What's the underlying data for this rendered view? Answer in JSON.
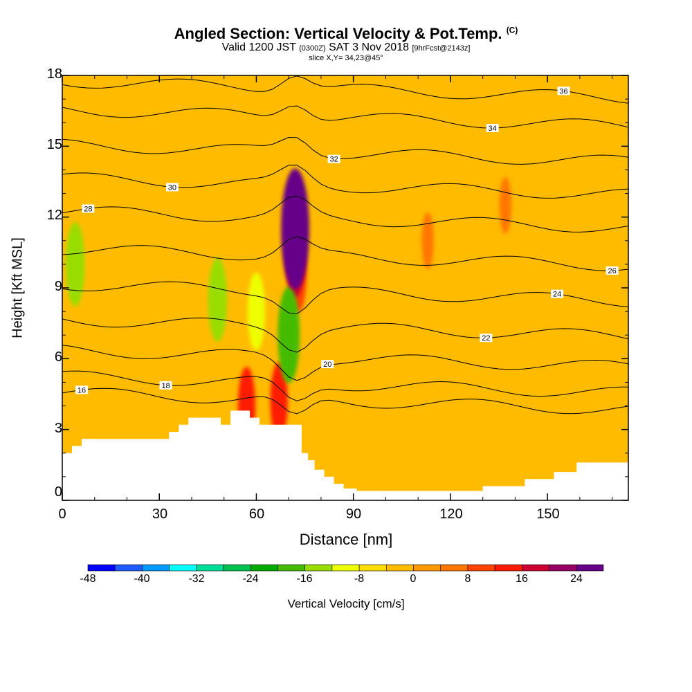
{
  "header": {
    "title": "Angled Section: Vertical Velocity & Pot.Temp.",
    "title_unit": "(C)",
    "valid_prefix": "Valid 1200 JST",
    "valid_z": "(0300Z)",
    "valid_date": "SAT 3 Nov 2018",
    "forecast": "[9hrFcst@2143z]",
    "slice": "slice X,Y= 34,23@45°"
  },
  "colors": {
    "background_field": "#ffbb00",
    "terrain": "#ffffff",
    "contour_line": "#000000"
  },
  "chart_data": {
    "type": "heatmap",
    "xlabel": "Distance [nm]",
    "ylabel": "Height [Kft MSL]",
    "xlim": [
      0,
      175
    ],
    "ylim": [
      0,
      18
    ],
    "x_ticks": [
      "0",
      "30",
      "60",
      "90",
      "120",
      "150"
    ],
    "y_ticks": [
      "0",
      "3",
      "6",
      "9",
      "12",
      "15",
      "18"
    ],
    "colorbar": {
      "label": "Vertical Velocity [cm/s]",
      "levels": [
        -48,
        -44,
        -40,
        -36,
        -32,
        -28,
        -24,
        -20,
        -16,
        -12,
        -8,
        -4,
        0,
        4,
        8,
        12,
        16,
        20,
        24,
        28
      ],
      "tick_labels": [
        "-48",
        "-40",
        "-32",
        "-24",
        "-16",
        "-8",
        "0",
        "8",
        "16",
        "24"
      ],
      "colors": [
        "#0000ff",
        "#1e5bff",
        "#0099ff",
        "#00ffff",
        "#00dd99",
        "#00c050",
        "#00aa00",
        "#44bb00",
        "#99dd00",
        "#eeff00",
        "#ffdd00",
        "#ffbb00",
        "#ff9900",
        "#ff7700",
        "#ff4400",
        "#ff1a00",
        "#cc0033",
        "#990066",
        "#660088"
      ]
    },
    "terrain_profile": {
      "x": [
        0,
        3,
        3,
        6,
        6,
        33,
        33,
        36,
        36,
        39,
        39,
        49,
        49,
        52,
        52,
        58,
        58,
        61,
        61,
        64,
        64,
        74,
        74,
        76,
        76,
        78,
        78,
        81,
        81,
        84,
        84,
        87,
        87,
        91,
        91,
        130,
        130,
        143,
        143,
        152,
        152,
        159,
        159,
        175
      ],
      "height": [
        2.0,
        2.0,
        2.3,
        2.3,
        2.6,
        2.6,
        2.9,
        2.9,
        3.2,
        3.2,
        3.5,
        3.5,
        3.2,
        3.2,
        3.8,
        3.8,
        3.5,
        3.5,
        3.2,
        3.2,
        3.2,
        3.2,
        2.0,
        2.0,
        1.7,
        1.7,
        1.3,
        1.3,
        1.0,
        1.0,
        0.7,
        0.7,
        0.5,
        0.5,
        0.4,
        0.4,
        0.6,
        0.6,
        0.9,
        0.9,
        1.2,
        1.2,
        1.6,
        1.6
      ]
    },
    "velocity_features": [
      {
        "kind": "updraft_core",
        "x": 72,
        "height": 11.5,
        "value": 26
      },
      {
        "kind": "updraft",
        "x": 72,
        "height": 10.5,
        "value": 16
      },
      {
        "kind": "updraft",
        "x": 73,
        "height": 9.5,
        "value": 10
      },
      {
        "kind": "downdraft",
        "x": 4,
        "height": 10.0,
        "value": -14
      },
      {
        "kind": "downdraft",
        "x": 70,
        "height": 7.0,
        "value": -18
      },
      {
        "kind": "downdraft",
        "x": 60,
        "height": 8.0,
        "value": -12
      },
      {
        "kind": "downdraft",
        "x": 48,
        "height": 8.5,
        "value": -14
      },
      {
        "kind": "updraft",
        "x": 67,
        "height": 4.2,
        "value": 12
      },
      {
        "kind": "updraft",
        "x": 57,
        "height": 4.0,
        "value": 12
      },
      {
        "kind": "updraft",
        "x": 113,
        "height": 11.0,
        "value": 5
      },
      {
        "kind": "updraft",
        "x": 137,
        "height": 12.5,
        "value": 5
      }
    ],
    "isentropes": [
      {
        "label": "16",
        "base_height": 4.2
      },
      {
        "label": "18",
        "base_height": 4.9
      },
      {
        "label": "20",
        "base_height": 6.0
      },
      {
        "label": "22",
        "base_height": 7.3
      },
      {
        "label": "24",
        "base_height": 8.8
      },
      {
        "label": "26",
        "base_height": 10.3
      },
      {
        "label": "28",
        "base_height": 11.9
      },
      {
        "label": "30",
        "base_height": 13.3
      },
      {
        "label": "32",
        "base_height": 14.7
      },
      {
        "label": "34",
        "base_height": 16.2
      },
      {
        "label": "36",
        "base_height": 17.4
      }
    ]
  }
}
